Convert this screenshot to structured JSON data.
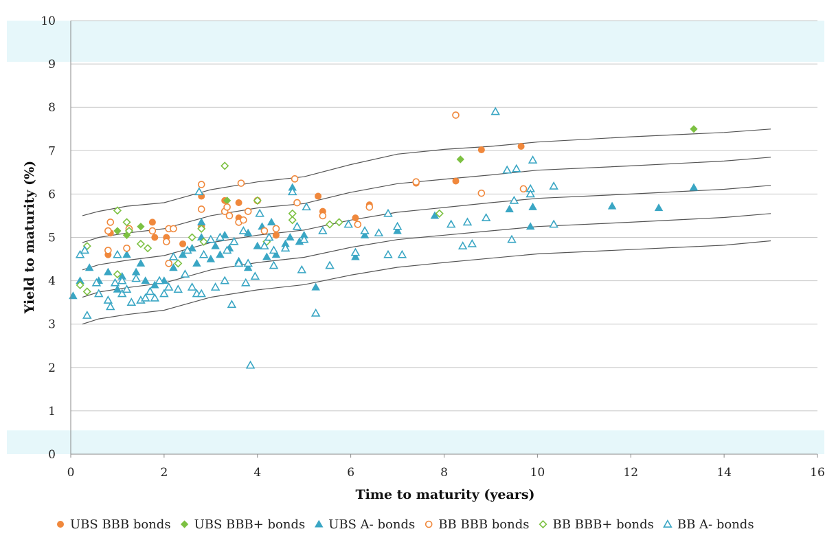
{
  "chart_data": {
    "type": "scatter",
    "xlabel": "Time to maturity (years)",
    "ylabel": "Yield to maturity (%)",
    "xlim": [
      0,
      16
    ],
    "ylim": [
      0,
      10
    ],
    "x_ticks": [
      "0",
      "2",
      "4",
      "6",
      "8",
      "10",
      "12",
      "14",
      "16"
    ],
    "y_ticks": [
      "0",
      "1",
      "2",
      "3",
      "4",
      "5",
      "6",
      "7",
      "8",
      "9",
      "10"
    ],
    "grid": "horizontal",
    "shaded_bands": [
      [
        0,
        0.55
      ],
      [
        9.05,
        10
      ]
    ],
    "legend_position": "bottom",
    "colors": {
      "orange": "#f0883c",
      "green": "#7dc142",
      "blue": "#3aa6c4",
      "band": "#e6f7fa",
      "grid": "#c8c8c8",
      "curve": "#555555"
    },
    "series": [
      {
        "name": "UBS BBB bonds",
        "marker": "circle",
        "filled": true,
        "color": "#f0883c",
        "points": [
          [
            0.8,
            4.6
          ],
          [
            0.85,
            5.1
          ],
          [
            1.25,
            5.2
          ],
          [
            1.75,
            5.35
          ],
          [
            1.8,
            5.0
          ],
          [
            2.05,
            5.0
          ],
          [
            2.4,
            4.85
          ],
          [
            2.8,
            5.95
          ],
          [
            2.8,
            5.25
          ],
          [
            3.3,
            5.85
          ],
          [
            3.6,
            5.8
          ],
          [
            3.6,
            5.45
          ],
          [
            4.4,
            5.05
          ],
          [
            5.3,
            5.95
          ],
          [
            5.4,
            5.6
          ],
          [
            6.1,
            5.45
          ],
          [
            6.4,
            5.75
          ],
          [
            7.4,
            6.25
          ],
          [
            8.25,
            6.3
          ],
          [
            8.8,
            7.02
          ],
          [
            9.65,
            7.1
          ]
        ]
      },
      {
        "name": "UBS BBB+ bonds",
        "marker": "diamond",
        "filled": true,
        "color": "#7dc142",
        "points": [
          [
            1.0,
            5.15
          ],
          [
            1.2,
            5.05
          ],
          [
            1.5,
            5.25
          ],
          [
            3.35,
            5.85
          ],
          [
            8.35,
            6.8
          ],
          [
            13.35,
            7.5
          ]
        ]
      },
      {
        "name": "UBS A- bonds",
        "marker": "triangle",
        "filled": true,
        "color": "#3aa6c4",
        "points": [
          [
            0.05,
            3.65
          ],
          [
            0.2,
            4.0
          ],
          [
            0.4,
            4.3
          ],
          [
            0.6,
            4.0
          ],
          [
            0.8,
            4.2
          ],
          [
            1.0,
            3.8
          ],
          [
            1.1,
            4.1
          ],
          [
            1.2,
            4.6
          ],
          [
            1.4,
            4.2
          ],
          [
            1.5,
            4.4
          ],
          [
            1.6,
            4.0
          ],
          [
            1.8,
            3.9
          ],
          [
            2.0,
            4.0
          ],
          [
            2.2,
            4.3
          ],
          [
            2.4,
            4.6
          ],
          [
            2.6,
            4.75
          ],
          [
            2.7,
            4.4
          ],
          [
            2.8,
            5.0
          ],
          [
            2.8,
            5.35
          ],
          [
            3.0,
            4.5
          ],
          [
            3.1,
            4.8
          ],
          [
            3.2,
            4.6
          ],
          [
            3.3,
            5.05
          ],
          [
            3.4,
            4.75
          ],
          [
            3.5,
            4.9
          ],
          [
            3.6,
            4.45
          ],
          [
            3.8,
            4.3
          ],
          [
            3.8,
            5.1
          ],
          [
            4.0,
            4.8
          ],
          [
            4.1,
            5.25
          ],
          [
            4.2,
            4.55
          ],
          [
            4.3,
            5.35
          ],
          [
            4.4,
            4.6
          ],
          [
            4.6,
            4.85
          ],
          [
            4.7,
            5.0
          ],
          [
            4.75,
            6.15
          ],
          [
            4.9,
            4.9
          ],
          [
            5.0,
            5.05
          ],
          [
            5.25,
            3.85
          ],
          [
            6.1,
            4.55
          ],
          [
            6.3,
            5.05
          ],
          [
            7.0,
            5.15
          ],
          [
            7.8,
            5.5
          ],
          [
            9.4,
            5.65
          ],
          [
            9.85,
            5.25
          ],
          [
            9.9,
            5.7
          ],
          [
            11.6,
            5.72
          ],
          [
            12.6,
            5.68
          ],
          [
            13.35,
            6.15
          ]
        ]
      },
      {
        "name": "BB BBB bonds",
        "marker": "circle",
        "filled": false,
        "color": "#f0883c",
        "points": [
          [
            0.8,
            5.15
          ],
          [
            0.8,
            4.7
          ],
          [
            0.85,
            5.35
          ],
          [
            1.2,
            4.75
          ],
          [
            1.25,
            5.2
          ],
          [
            1.75,
            5.15
          ],
          [
            2.05,
            4.9
          ],
          [
            2.1,
            5.2
          ],
          [
            2.1,
            4.4
          ],
          [
            2.2,
            5.2
          ],
          [
            2.8,
            6.22
          ],
          [
            2.8,
            5.65
          ],
          [
            3.3,
            5.6
          ],
          [
            3.35,
            5.7
          ],
          [
            3.4,
            5.5
          ],
          [
            3.6,
            5.35
          ],
          [
            3.65,
            6.25
          ],
          [
            3.7,
            5.4
          ],
          [
            3.8,
            5.6
          ],
          [
            4.0,
            5.85
          ],
          [
            4.15,
            5.15
          ],
          [
            4.4,
            5.2
          ],
          [
            4.8,
            6.35
          ],
          [
            4.85,
            5.8
          ],
          [
            5.4,
            5.5
          ],
          [
            6.15,
            5.3
          ],
          [
            6.4,
            5.7
          ],
          [
            7.4,
            6.28
          ],
          [
            8.25,
            7.82
          ],
          [
            8.8,
            6.02
          ],
          [
            9.7,
            6.12
          ]
        ]
      },
      {
        "name": "BB BBB+ bonds",
        "marker": "diamond",
        "filled": false,
        "color": "#7dc142",
        "points": [
          [
            0.2,
            3.9
          ],
          [
            0.35,
            4.8
          ],
          [
            0.35,
            3.75
          ],
          [
            1.0,
            5.62
          ],
          [
            1.0,
            4.15
          ],
          [
            1.2,
            5.35
          ],
          [
            1.25,
            5.15
          ],
          [
            1.5,
            4.85
          ],
          [
            1.65,
            4.75
          ],
          [
            2.3,
            4.4
          ],
          [
            2.6,
            5.0
          ],
          [
            2.8,
            5.2
          ],
          [
            2.85,
            4.9
          ],
          [
            3.3,
            6.65
          ],
          [
            4.0,
            5.85
          ],
          [
            4.2,
            4.9
          ],
          [
            4.75,
            5.4
          ],
          [
            4.75,
            5.55
          ],
          [
            5.55,
            5.3
          ],
          [
            5.75,
            5.35
          ],
          [
            7.9,
            5.55
          ]
        ]
      },
      {
        "name": "BB A- bonds",
        "marker": "triangle",
        "filled": false,
        "color": "#3aa6c4",
        "points": [
          [
            0.2,
            4.6
          ],
          [
            0.3,
            4.7
          ],
          [
            0.35,
            3.2
          ],
          [
            0.55,
            3.95
          ],
          [
            0.6,
            3.7
          ],
          [
            0.8,
            3.55
          ],
          [
            0.85,
            3.4
          ],
          [
            0.95,
            3.95
          ],
          [
            1.0,
            4.6
          ],
          [
            1.1,
            3.7
          ],
          [
            1.1,
            4.0
          ],
          [
            1.2,
            3.8
          ],
          [
            1.3,
            3.5
          ],
          [
            1.4,
            4.05
          ],
          [
            1.5,
            3.55
          ],
          [
            1.6,
            3.6
          ],
          [
            1.7,
            3.75
          ],
          [
            1.8,
            3.6
          ],
          [
            1.9,
            4.0
          ],
          [
            2.0,
            3.7
          ],
          [
            2.1,
            3.85
          ],
          [
            2.2,
            4.55
          ],
          [
            2.3,
            3.8
          ],
          [
            2.45,
            4.15
          ],
          [
            2.5,
            4.7
          ],
          [
            2.6,
            3.85
          ],
          [
            2.7,
            3.7
          ],
          [
            2.75,
            6.05
          ],
          [
            2.8,
            3.7
          ],
          [
            2.85,
            4.6
          ],
          [
            3.0,
            4.95
          ],
          [
            3.1,
            3.85
          ],
          [
            3.2,
            5.0
          ],
          [
            3.3,
            4.0
          ],
          [
            3.35,
            4.7
          ],
          [
            3.45,
            3.45
          ],
          [
            3.5,
            4.9
          ],
          [
            3.6,
            4.4
          ],
          [
            3.7,
            5.15
          ],
          [
            3.75,
            3.95
          ],
          [
            3.8,
            4.4
          ],
          [
            3.85,
            2.05
          ],
          [
            3.95,
            4.1
          ],
          [
            4.05,
            5.55
          ],
          [
            4.15,
            4.8
          ],
          [
            4.25,
            5.0
          ],
          [
            4.35,
            4.7
          ],
          [
            4.35,
            4.35
          ],
          [
            4.6,
            4.75
          ],
          [
            4.75,
            6.05
          ],
          [
            4.85,
            5.25
          ],
          [
            4.95,
            4.25
          ],
          [
            5.0,
            4.95
          ],
          [
            5.05,
            5.7
          ],
          [
            5.25,
            3.25
          ],
          [
            5.4,
            5.15
          ],
          [
            5.55,
            4.35
          ],
          [
            5.95,
            5.3
          ],
          [
            6.1,
            4.65
          ],
          [
            6.3,
            5.15
          ],
          [
            6.6,
            5.1
          ],
          [
            6.8,
            4.6
          ],
          [
            6.8,
            5.55
          ],
          [
            7.0,
            5.25
          ],
          [
            7.1,
            4.6
          ],
          [
            8.15,
            5.3
          ],
          [
            8.4,
            4.8
          ],
          [
            8.5,
            5.35
          ],
          [
            8.6,
            4.85
          ],
          [
            8.9,
            5.45
          ],
          [
            9.1,
            7.9
          ],
          [
            9.35,
            6.55
          ],
          [
            9.45,
            4.95
          ],
          [
            9.5,
            5.85
          ],
          [
            9.55,
            6.58
          ],
          [
            9.85,
            6.12
          ],
          [
            9.85,
            6.0
          ],
          [
            9.9,
            6.78
          ],
          [
            10.35,
            5.3
          ],
          [
            10.35,
            6.18
          ]
        ]
      }
    ],
    "curves": [
      [
        [
          0.25,
          5.5
        ],
        [
          0.6,
          5.6
        ],
        [
          1.2,
          5.72
        ],
        [
          2.0,
          5.8
        ],
        [
          3.0,
          6.1
        ],
        [
          4.0,
          6.28
        ],
        [
          5.0,
          6.4
        ],
        [
          6.0,
          6.68
        ],
        [
          7.0,
          6.92
        ],
        [
          8.0,
          7.03
        ],
        [
          9.0,
          7.1
        ],
        [
          10.0,
          7.2
        ],
        [
          12.0,
          7.32
        ],
        [
          14.0,
          7.42
        ],
        [
          15.0,
          7.5
        ]
      ],
      [
        [
          0.25,
          4.88
        ],
        [
          0.6,
          5.0
        ],
        [
          1.2,
          5.1
        ],
        [
          2.0,
          5.2
        ],
        [
          3.0,
          5.5
        ],
        [
          4.0,
          5.68
        ],
        [
          5.0,
          5.78
        ],
        [
          6.0,
          6.04
        ],
        [
          7.0,
          6.24
        ],
        [
          8.0,
          6.34
        ],
        [
          9.0,
          6.44
        ],
        [
          10.0,
          6.55
        ],
        [
          12.0,
          6.65
        ],
        [
          14.0,
          6.76
        ],
        [
          15.0,
          6.85
        ]
      ],
      [
        [
          0.25,
          4.25
        ],
        [
          0.6,
          4.37
        ],
        [
          1.2,
          4.47
        ],
        [
          2.0,
          4.58
        ],
        [
          3.0,
          4.88
        ],
        [
          4.0,
          5.05
        ],
        [
          5.0,
          5.17
        ],
        [
          6.0,
          5.4
        ],
        [
          7.0,
          5.58
        ],
        [
          8.0,
          5.69
        ],
        [
          9.0,
          5.8
        ],
        [
          10.0,
          5.9
        ],
        [
          12.0,
          6.0
        ],
        [
          14.0,
          6.11
        ],
        [
          15.0,
          6.2
        ]
      ],
      [
        [
          0.25,
          3.62
        ],
        [
          0.6,
          3.74
        ],
        [
          1.2,
          3.84
        ],
        [
          2.0,
          3.95
        ],
        [
          3.0,
          4.25
        ],
        [
          4.0,
          4.42
        ],
        [
          5.0,
          4.54
        ],
        [
          6.0,
          4.77
        ],
        [
          7.0,
          4.95
        ],
        [
          8.0,
          5.05
        ],
        [
          9.0,
          5.15
        ],
        [
          10.0,
          5.25
        ],
        [
          12.0,
          5.35
        ],
        [
          14.0,
          5.46
        ],
        [
          15.0,
          5.55
        ]
      ],
      [
        [
          0.25,
          3.0
        ],
        [
          0.6,
          3.12
        ],
        [
          1.2,
          3.22
        ],
        [
          2.0,
          3.32
        ],
        [
          3.0,
          3.62
        ],
        [
          4.0,
          3.79
        ],
        [
          5.0,
          3.91
        ],
        [
          6.0,
          4.13
        ],
        [
          7.0,
          4.31
        ],
        [
          8.0,
          4.42
        ],
        [
          9.0,
          4.52
        ],
        [
          10.0,
          4.62
        ],
        [
          12.0,
          4.72
        ],
        [
          14.0,
          4.82
        ],
        [
          15.0,
          4.92
        ]
      ]
    ]
  }
}
